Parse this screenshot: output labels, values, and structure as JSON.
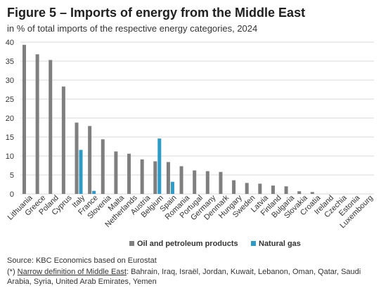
{
  "header": {
    "title": "Figure 5 – Imports of energy from the Middle East",
    "subtitle": "in % of total imports of the respective energy categories, 2024"
  },
  "footer": {
    "source": "Source: KBC Economics based on Eurostat",
    "footnote_marker": "(*) ",
    "footnote_link": "Narrow definition of Middle East",
    "footnote_text": ": Bahrain, Iraq, Israël, Jordan, Kuwait, Lebanon, Oman, Qatar, Saudi Arabia, Syria, United Arab Emirates, Yemen"
  },
  "chart_data": {
    "type": "bar",
    "title": "",
    "xlabel": "",
    "ylabel": "",
    "ylim": [
      0,
      40
    ],
    "yticks": [
      0,
      5,
      10,
      15,
      20,
      25,
      30,
      35,
      40
    ],
    "grid": true,
    "legend_position": "bottom",
    "colors": {
      "oil": "#7f7f7f",
      "gas": "#2e9ac6",
      "grid": "#d9d9d9"
    },
    "categories": [
      "Lithuania",
      "Greece",
      "Poland",
      "Cyprus",
      "Italy",
      "France",
      "Slovenia",
      "Malta",
      "Netherlands",
      "Austria",
      "Belgium",
      "Spain",
      "Romania",
      "Portugal",
      "Germany",
      "Denmark",
      "Hungary",
      "Sweden",
      "Latvia",
      "Finland",
      "Bulgaria",
      "Slovakia",
      "Croatia",
      "Ireland",
      "Czechia",
      "Estonia",
      "Luxembourg"
    ],
    "series": [
      {
        "name": "Oil and petroleum products",
        "values": [
          39.3,
          36.8,
          35.3,
          28.3,
          18.8,
          17.9,
          14.4,
          11.2,
          10.6,
          9.1,
          8.6,
          8.4,
          7.3,
          6.2,
          6.0,
          5.8,
          3.6,
          2.9,
          2.7,
          2.2,
          2.0,
          0.7,
          0.5,
          0,
          0,
          0,
          0
        ]
      },
      {
        "name": "Natural gas",
        "values": [
          0,
          0,
          0,
          0,
          11.6,
          0.8,
          0,
          0,
          0,
          0,
          14.6,
          3.2,
          0,
          0,
          0,
          0,
          0,
          0,
          0,
          0,
          0,
          0,
          0,
          0,
          0,
          0,
          0
        ]
      }
    ]
  }
}
